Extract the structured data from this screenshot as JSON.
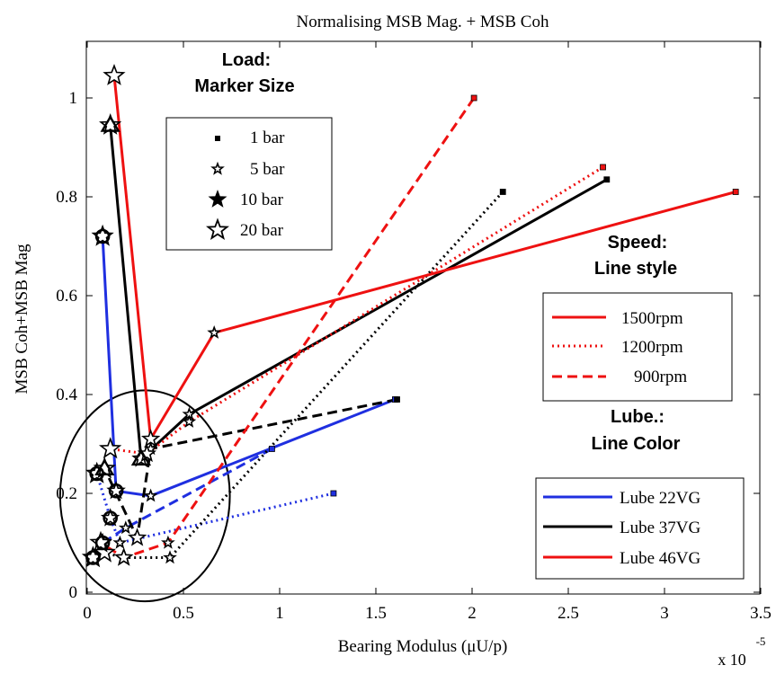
{
  "chart_data": {
    "type": "line",
    "title": "Normalising MSB Mag. + MSB Coh",
    "xlabel": "Bearing Modulus (μU/p)",
    "ylabel": "MSB Coh+MSB Mag",
    "x_multiplier_label": "x 10",
    "x_multiplier_exp": "-5",
    "xlim": [
      0,
      3.5
    ],
    "ylim": [
      0,
      1.1
    ],
    "x_ticks": [
      0,
      0.5,
      1,
      1.5,
      2,
      2.5,
      3,
      3.5
    ],
    "x_tick_labels": [
      "0",
      "0.5",
      "1",
      "1.5",
      "2",
      "2.5",
      "3",
      "3.5"
    ],
    "y_ticks": [
      0,
      0.2,
      0.4,
      0.6,
      0.8,
      1
    ],
    "y_tick_labels": [
      "0",
      "0.2",
      "0.4",
      "0.6",
      "0.8",
      "1"
    ],
    "colors": {
      "lube22": "#1f2fe0",
      "lube37": "#000000",
      "lube46": "#ee1111"
    },
    "series": [
      {
        "lube": "Lube 22VG",
        "speed": "1500rpm",
        "color": "#1f2fe0",
        "style": "solid",
        "points": [
          {
            "x": 1.6,
            "y": 0.39
          },
          {
            "x": 0.33,
            "y": 0.195
          },
          {
            "x": 0.15,
            "y": 0.205
          },
          {
            "x": 0.08,
            "y": 0.72
          }
        ]
      },
      {
        "lube": "Lube 22VG",
        "speed": "1200rpm",
        "color": "#1f2fe0",
        "style": "dotted",
        "points": [
          {
            "x": 1.28,
            "y": 0.2
          },
          {
            "x": 0.17,
            "y": 0.1
          },
          {
            "x": 0.12,
            "y": 0.15
          },
          {
            "x": 0.05,
            "y": 0.24
          }
        ]
      },
      {
        "lube": "Lube 22VG",
        "speed": "900rpm",
        "color": "#1f2fe0",
        "style": "dashed",
        "points": [
          {
            "x": 0.96,
            "y": 0.29
          },
          {
            "x": 0.2,
            "y": 0.13
          },
          {
            "x": 0.08,
            "y": 0.1
          },
          {
            "x": 0.03,
            "y": 0.07
          }
        ]
      },
      {
        "lube": "Lube 37VG",
        "speed": "1500rpm",
        "color": "#000000",
        "style": "solid",
        "points": [
          {
            "x": 2.7,
            "y": 0.835
          },
          {
            "x": 0.53,
            "y": 0.36
          },
          {
            "x": 0.28,
            "y": 0.27
          },
          {
            "x": 0.12,
            "y": 0.945
          }
        ]
      },
      {
        "lube": "Lube 37VG",
        "speed": "1200rpm",
        "color": "#000000",
        "style": "dotted",
        "points": [
          {
            "x": 2.16,
            "y": 0.81
          },
          {
            "x": 0.43,
            "y": 0.07
          },
          {
            "x": 0.19,
            "y": 0.07
          },
          {
            "x": 0.09,
            "y": 0.08
          }
        ]
      },
      {
        "lube": "Lube 37VG",
        "speed": "900rpm",
        "color": "#000000",
        "style": "dashed",
        "points": [
          {
            "x": 1.61,
            "y": 0.39
          },
          {
            "x": 0.33,
            "y": 0.29
          },
          {
            "x": 0.26,
            "y": 0.11
          },
          {
            "x": 0.09,
            "y": 0.25
          }
        ]
      },
      {
        "lube": "Lube 46VG",
        "speed": "1500rpm",
        "color": "#ee1111",
        "style": "solid",
        "points": [
          {
            "x": 3.37,
            "y": 0.81
          },
          {
            "x": 0.66,
            "y": 0.525
          },
          {
            "x": 0.33,
            "y": 0.31
          },
          {
            "x": 0.14,
            "y": 1.045
          }
        ]
      },
      {
        "lube": "Lube 46VG",
        "speed": "1200rpm",
        "color": "#ee1111",
        "style": "dotted",
        "points": [
          {
            "x": 2.68,
            "y": 0.86
          },
          {
            "x": 0.53,
            "y": 0.345
          },
          {
            "x": 0.31,
            "y": 0.28
          },
          {
            "x": 0.12,
            "y": 0.29
          }
        ]
      },
      {
        "lube": "Lube 46VG",
        "speed": "900rpm",
        "color": "#ee1111",
        "style": "dashed",
        "points": [
          {
            "x": 2.01,
            "y": 1.0
          },
          {
            "x": 0.42,
            "y": 0.1
          },
          {
            "x": 0.19,
            "y": 0.07
          },
          {
            "x": 0.07,
            "y": 0.1
          }
        ]
      }
    ],
    "circles": [
      {
        "x": 0.08,
        "y": 0.72
      },
      {
        "x": 0.05,
        "y": 0.24
      },
      {
        "x": 0.03,
        "y": 0.07
      },
      {
        "x": 0.15,
        "y": 0.205
      },
      {
        "x": 0.12,
        "y": 0.15
      },
      {
        "x": 0.08,
        "y": 0.1
      }
    ],
    "triangles": [
      {
        "x": 0.12,
        "y": 0.945
      },
      {
        "x": 0.28,
        "y": 0.27
      },
      {
        "x": 0.09,
        "y": 0.25
      }
    ],
    "marker_order_note": "load per point in order: 1 bar, 5 bar, 10 bar, 20 bar",
    "highlight_circle": {
      "cx": 0.3,
      "cy": 0.195,
      "rx": 0.7,
      "ry": 0.27
    },
    "legends": {
      "load": {
        "title_line1": "Load:",
        "title_line2": "Marker Size",
        "items": [
          "1 bar",
          "5 bar",
          "10 bar",
          "20 bar"
        ]
      },
      "speed": {
        "title_line1": "Speed:",
        "title_line2": "Line style",
        "items": [
          {
            "label": "1500rpm",
            "style": "solid"
          },
          {
            "label": "1200rpm",
            "style": "dotted"
          },
          {
            "label": "900rpm",
            "style": "dashed"
          }
        ]
      },
      "lube": {
        "title_line1": "Lube.:",
        "title_line2": "Line Color",
        "items": [
          {
            "label": "Lube 22VG",
            "color": "#1f2fe0"
          },
          {
            "label": "Lube 37VG",
            "color": "#000000"
          },
          {
            "label": "Lube 46VG",
            "color": "#ee1111"
          }
        ]
      }
    }
  }
}
